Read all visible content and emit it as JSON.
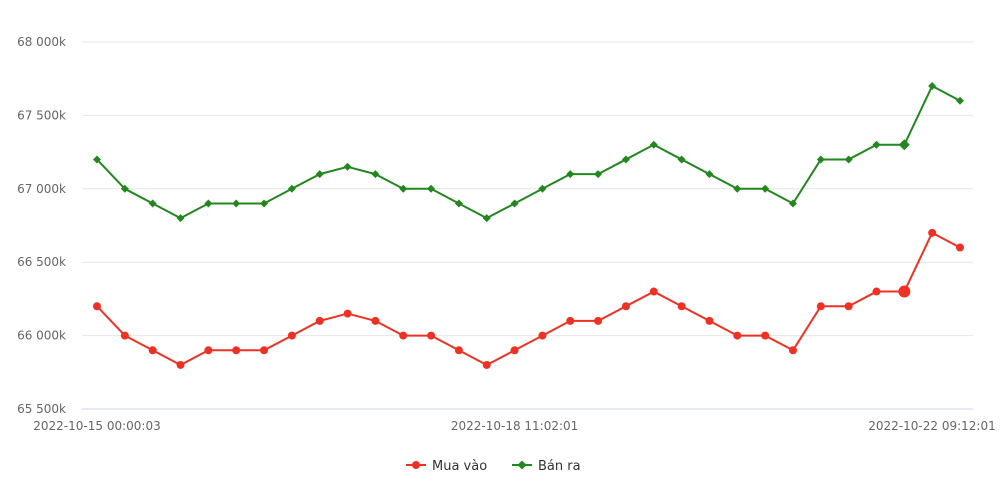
{
  "chart_data": {
    "type": "line",
    "y_ticks": [
      "65 500k",
      "66 000k",
      "66 500k",
      "67 000k",
      "67 500k",
      "68 000k"
    ],
    "ylim": [
      65500,
      68000
    ],
    "x_tick_labels": [
      {
        "index": 0,
        "label": "2022-10-15 00:00:03"
      },
      {
        "index": 15,
        "label": "2022-10-18 11:02:01"
      },
      {
        "index": 31,
        "label": "2022-10-22 09:12:01"
      }
    ],
    "grid": true,
    "legend_position": "bottom",
    "series": [
      {
        "name": "Mua vào",
        "color": "#ef3124",
        "marker": "circle",
        "values": [
          66200,
          66000,
          65900,
          65800,
          65900,
          65900,
          65900,
          66000,
          66100,
          66150,
          66100,
          66000,
          66000,
          65900,
          65800,
          65900,
          66000,
          66100,
          66100,
          66200,
          66300,
          66200,
          66100,
          66000,
          66000,
          65900,
          66200,
          66200,
          66300,
          66300,
          66700,
          66600
        ]
      },
      {
        "name": "Bán ra",
        "color": "#22871e",
        "marker": "diamond",
        "values": [
          67200,
          67000,
          66900,
          66800,
          66900,
          66900,
          66900,
          67000,
          67100,
          67150,
          67100,
          67000,
          67000,
          66900,
          66800,
          66900,
          67000,
          67100,
          67100,
          67200,
          67300,
          67200,
          67100,
          67000,
          67000,
          66900,
          67200,
          67200,
          67300,
          67300,
          67700,
          67600
        ]
      }
    ],
    "highlight_index": 29
  }
}
